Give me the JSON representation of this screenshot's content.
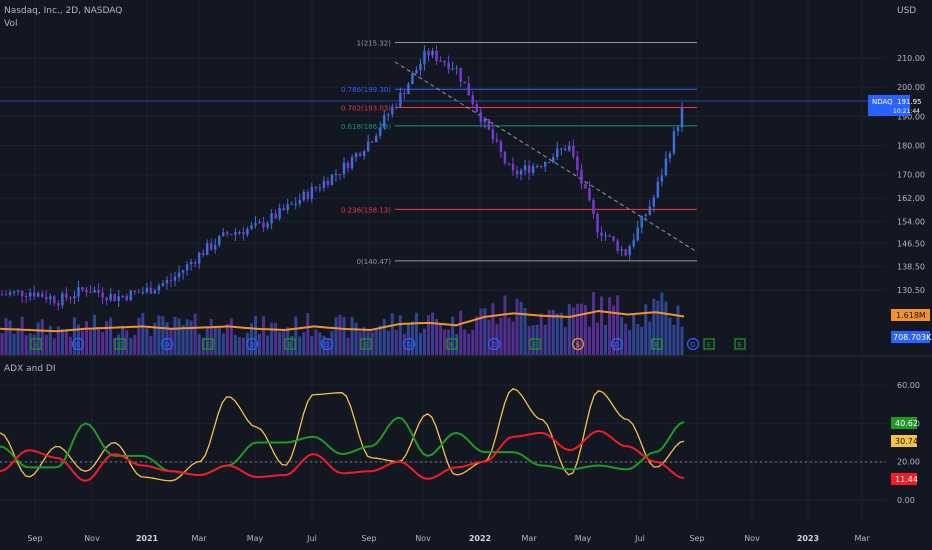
{
  "header": {
    "symbol_line": "Nasdaq, Inc., 2D, NASDAQ",
    "volume_label": "Vol",
    "currency": "USD",
    "indicator_title": "ADX and DI"
  },
  "colors": {
    "background": "#131722",
    "grid": "#1e222d",
    "candle": "#3f6ed8",
    "candle_down": "#7a3bd0",
    "volume_ma": "#f4922a",
    "adx": "#f5c343",
    "di_plus": "#1e9a25",
    "di_minus": "#f01c2a",
    "fib_top": "#9598a1",
    "fib_786": "#2962ff",
    "fib_702": "#f23645",
    "fib_618": "#089981",
    "fib_236": "#f23645",
    "price_line": "#2962ff"
  },
  "price_axis": {
    "labels": [
      "210.00",
      "200.00",
      "190.00",
      "180.00",
      "170.00",
      "162.00",
      "154.00",
      "146.50",
      "138.50",
      "130.50"
    ],
    "last_price": "191.95",
    "last_symbol": "NDAQ",
    "countdown": "10:21:44",
    "volume_ma_value": "1.618M",
    "volume_value": "708.703K"
  },
  "indicator_axis": {
    "labels": [
      "60.00",
      "40.00",
      "20.00",
      "0.00"
    ],
    "di_plus_value": "40.62",
    "adx_value": "30.74",
    "di_minus_value": "11.44"
  },
  "time_axis": [
    "Sep",
    "Nov",
    "2021",
    "Mar",
    "May",
    "Jul",
    "Sep",
    "Nov",
    "2022",
    "Mar",
    "May",
    "Jul",
    "Sep",
    "Nov",
    "2023",
    "Mar"
  ],
  "fib_levels": [
    {
      "label": "1(215.32)",
      "price": 215.32
    },
    {
      "label": "0.786(199.30)",
      "price": 199.3
    },
    {
      "label": "0.702(193.03)",
      "price": 193.03
    },
    {
      "label": "0.618(186.73)",
      "price": 186.73
    },
    {
      "label": "0.236(158.13)",
      "price": 158.13
    },
    {
      "label": "0(140.47)",
      "price": 140.47
    }
  ],
  "event_markers": [
    "E",
    "D",
    "E",
    "D",
    "E",
    "D",
    "E",
    "D",
    "E",
    "D",
    "E",
    "D",
    "E",
    "$",
    "D",
    "E"
  ],
  "chart_data": {
    "type": "candlestick",
    "price_series": {
      "dates": [
        "2020-08",
        "2020-09",
        "2020-10",
        "2020-11",
        "2020-12",
        "2021-01",
        "2021-02",
        "2021-03",
        "2021-04",
        "2021-05",
        "2021-06",
        "2021-07",
        "2021-08",
        "2021-09",
        "2021-10",
        "2021-11",
        "2021-12",
        "2022-01",
        "2022-02",
        "2022-03",
        "2022-04",
        "2022-05",
        "2022-06",
        "2022-07",
        "2022-08"
      ],
      "close": [
        129,
        130,
        127,
        131,
        128,
        130,
        134,
        143,
        150,
        152,
        158,
        165,
        172,
        182,
        196,
        212,
        207,
        188,
        170,
        174,
        180,
        152,
        143,
        162,
        192
      ]
    },
    "volume_ma_series": [
      1.1,
      1.05,
      1.0,
      1.1,
      1.15,
      1.2,
      1.1,
      1.15,
      1.2,
      1.1,
      1.05,
      1.2,
      1.1,
      1.05,
      1.3,
      1.35,
      1.25,
      1.6,
      1.75,
      1.65,
      1.6,
      1.85,
      1.7,
      1.8,
      1.618
    ],
    "adx_di": {
      "adx": [
        35,
        12,
        28,
        15,
        30,
        12,
        10,
        20,
        54,
        38,
        18,
        55,
        56,
        22,
        20,
        45,
        13,
        20,
        58,
        42,
        13,
        57,
        42,
        17,
        30.74
      ],
      "di_plus": [
        28,
        17,
        17,
        40,
        23,
        23,
        15,
        13,
        18,
        30,
        30,
        33,
        24,
        28,
        43,
        23,
        35,
        25,
        25,
        18,
        16,
        18,
        16,
        25,
        40.62
      ],
      "di_minus": [
        15,
        26,
        22,
        10,
        24,
        18,
        15,
        13,
        18,
        12,
        13,
        24,
        14,
        15,
        20,
        11,
        17,
        20,
        33,
        35,
        26,
        36,
        28,
        20,
        11.44
      ]
    },
    "ylim": [
      130.5,
      216
    ],
    "indicator_ylim": [
      0,
      60
    ]
  }
}
